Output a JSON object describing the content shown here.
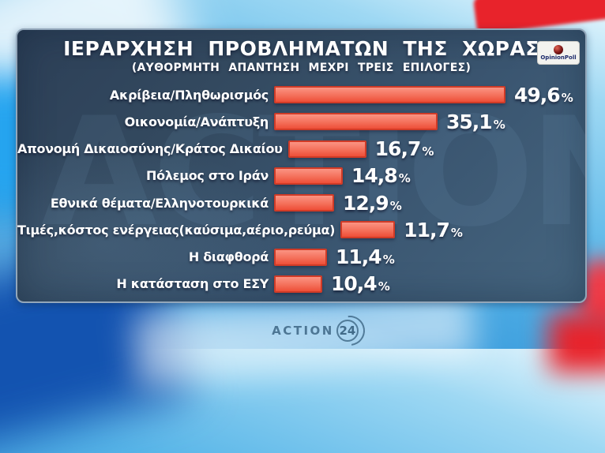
{
  "header": {
    "title": "ΙΕΡΑΡΧΗΣΗ ΠΡΟΒΛΗΜΑΤΩΝ ΤΗΣ ΧΩΡΑΣ",
    "subtitle": "(ΑΥΘΟΡΜΗΤΗ ΑΠΑΝΤΗΣΗ ΜΕΧΡΙ ΤΡΕΙΣ ΕΠΙΛΟΓΕΣ)"
  },
  "badges": {
    "opinion_poll": "OpinionPoll"
  },
  "footer": {
    "channel_name": "ACTION",
    "channel_number": "24"
  },
  "colors": {
    "accent_red": "#ee4f38",
    "bar_border": "#d03b27",
    "panel_bg": "#35506d",
    "background_red": "#e8232b",
    "text": "#ffffff"
  },
  "chart_data": {
    "type": "bar",
    "orientation": "horizontal",
    "title": "ΙΕΡΑΡΧΗΣΗ ΠΡΟΒΛΗΜΑΤΩΝ ΤΗΣ ΧΩΡΑΣ",
    "subtitle": "(ΑΥΘΟΡΜΗΤΗ ΑΠΑΝΤΗΣΗ ΜΕΧΡΙ ΤΡΕΙΣ ΕΠΙΛΟΓΕΣ)",
    "unit": "%",
    "xlim": [
      0,
      55
    ],
    "grid": false,
    "legend": false,
    "categories": [
      "Ακρίβεια/Πληθωρισμός",
      "Οικονομία/Ανάπτυξη",
      "Απονομή Δικαιοσύνης/Κράτος Δικαίου",
      "Πόλεμος στο Ιράν",
      "Εθνικά θέματα/Ελληνοτουρκικά",
      "Τιμές,κόστος ενέργειας(καύσιμα,αέριο,ρεύμα)",
      "Η διαφθορά",
      "Η κατάσταση στο ΕΣΥ"
    ],
    "values": [
      49.6,
      35.1,
      16.7,
      14.8,
      12.9,
      11.7,
      11.4,
      10.4
    ],
    "value_labels": [
      "49,6",
      "35,1",
      "16,7",
      "14,8",
      "12,9",
      "11,7",
      "11,4",
      "10,4"
    ]
  }
}
